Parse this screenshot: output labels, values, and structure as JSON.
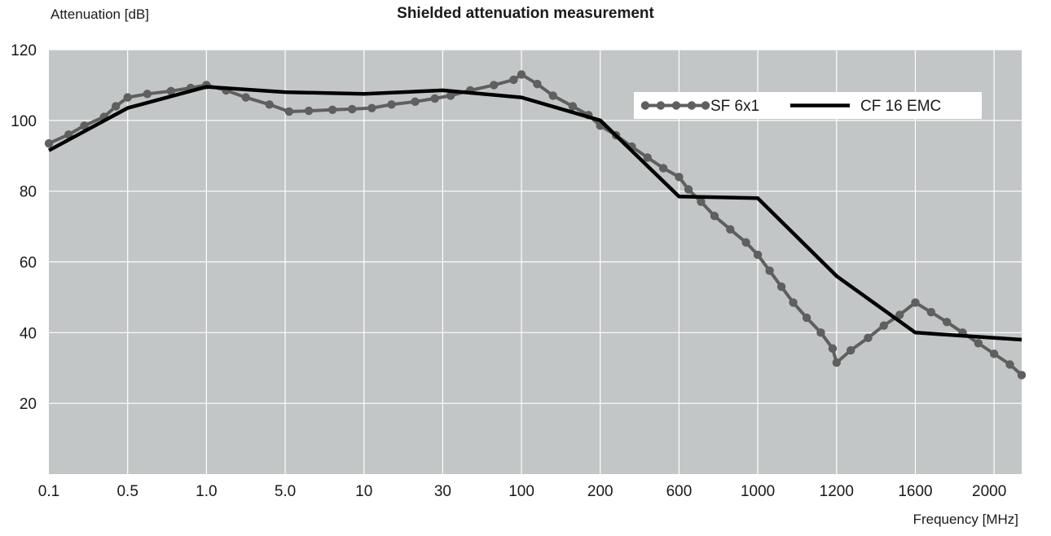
{
  "chart_data": {
    "type": "line",
    "title": "Shielded attenuation measurement",
    "ylabel": "Attenuation [dB]",
    "xlabel": "Frequency [MHz]",
    "categories": [
      "0.1",
      "0.5",
      "1.0",
      "5.0",
      "10",
      "30",
      "100",
      "200",
      "600",
      "1000",
      "1200",
      "1600",
      "2000"
    ],
    "y_ticks": [
      20,
      40,
      60,
      80,
      100,
      120
    ],
    "ylim": [
      0,
      120
    ],
    "grid": true,
    "legend_position": "top-right",
    "background_color": "#c3c6c6",
    "series": [
      {
        "name": "SF 6x1",
        "color": "#5f5f5f",
        "marker": "circle",
        "points": [
          [
            0,
            93.5
          ],
          [
            0.25,
            96
          ],
          [
            0.45,
            98.5
          ],
          [
            0.7,
            101
          ],
          [
            0.85,
            104
          ],
          [
            1.0,
            106.5
          ],
          [
            1.25,
            107.5
          ],
          [
            1.55,
            108.3
          ],
          [
            1.8,
            109.2
          ],
          [
            2.0,
            110
          ],
          [
            2.25,
            108.5
          ],
          [
            2.5,
            106.5
          ],
          [
            2.8,
            104.5
          ],
          [
            3.05,
            102.5
          ],
          [
            3.3,
            102.7
          ],
          [
            3.6,
            103
          ],
          [
            3.85,
            103.2
          ],
          [
            4.1,
            103.5
          ],
          [
            4.35,
            104.5
          ],
          [
            4.65,
            105.3
          ],
          [
            4.9,
            106.2
          ],
          [
            5.1,
            107
          ],
          [
            5.35,
            108.5
          ],
          [
            5.65,
            110
          ],
          [
            5.9,
            111.5
          ],
          [
            6.0,
            113
          ],
          [
            6.2,
            110.3
          ],
          [
            6.4,
            107
          ],
          [
            6.65,
            104
          ],
          [
            6.85,
            101.5
          ],
          [
            7.0,
            98.5
          ],
          [
            7.2,
            95.8
          ],
          [
            7.4,
            92.6
          ],
          [
            7.6,
            89.5
          ],
          [
            7.8,
            86.5
          ],
          [
            8.0,
            84
          ],
          [
            8.12,
            80.5
          ],
          [
            8.28,
            77
          ],
          [
            8.45,
            73
          ],
          [
            8.65,
            69.2
          ],
          [
            8.85,
            65.5
          ],
          [
            9.0,
            62
          ],
          [
            9.15,
            57.5
          ],
          [
            9.3,
            53
          ],
          [
            9.45,
            48.5
          ],
          [
            9.62,
            44.2
          ],
          [
            9.8,
            40
          ],
          [
            9.95,
            35.5
          ],
          [
            10.0,
            31.5
          ],
          [
            10.18,
            35
          ],
          [
            10.4,
            38.5
          ],
          [
            10.6,
            42
          ],
          [
            10.8,
            45
          ],
          [
            11.0,
            48.5
          ],
          [
            11.2,
            45.8
          ],
          [
            11.4,
            43
          ],
          [
            11.6,
            40
          ],
          [
            11.8,
            37
          ],
          [
            12.0,
            34
          ],
          [
            12.2,
            31
          ],
          [
            12.35,
            28
          ]
        ]
      },
      {
        "name": "CF 16 EMC",
        "color": "#000000",
        "marker": "none",
        "points": [
          [
            0,
            91.5
          ],
          [
            1,
            103.5
          ],
          [
            2,
            109.5
          ],
          [
            3,
            108
          ],
          [
            4,
            107.5
          ],
          [
            5,
            108.5
          ],
          [
            6,
            106.5
          ],
          [
            7,
            100
          ],
          [
            8,
            78.5
          ],
          [
            9,
            78
          ],
          [
            10,
            56
          ],
          [
            11,
            40
          ],
          [
            12.35,
            38
          ]
        ]
      }
    ]
  }
}
